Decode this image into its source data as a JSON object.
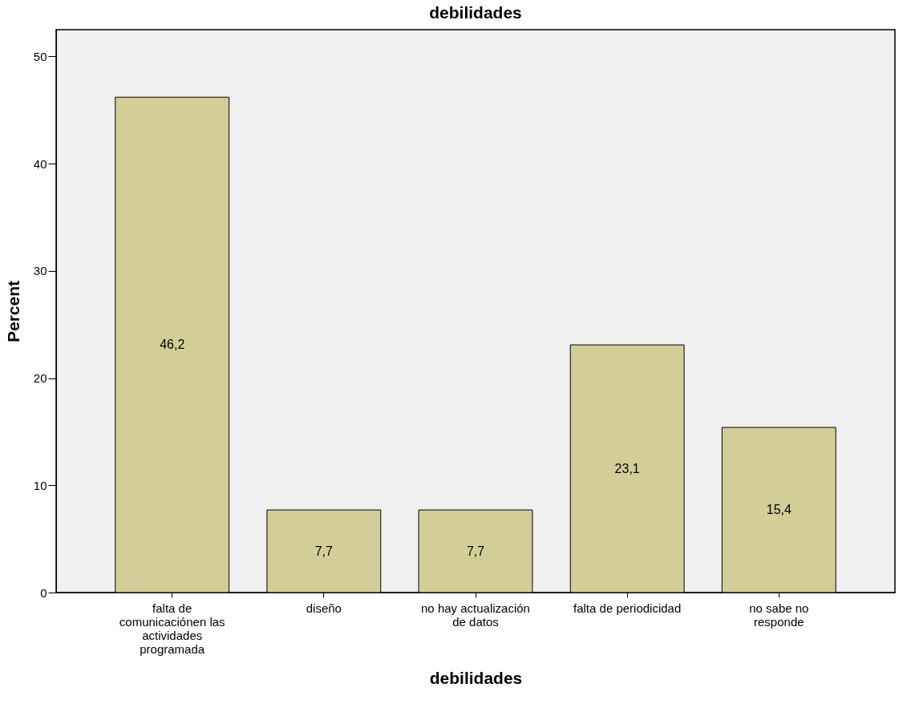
{
  "chart_data": {
    "type": "bar",
    "title": "debilidades",
    "xlabel": "debilidades",
    "ylabel": "Percent",
    "categories": [
      "falta de\ncomunicaciónen las\nactividades\nprogramada",
      "diseño",
      "no hay actualización\nde datos",
      "falta de periodicidad",
      "no sabe no\nresponde"
    ],
    "values": [
      46.2,
      7.7,
      7.7,
      23.1,
      15.4
    ],
    "value_labels": [
      "46,2",
      "7,7",
      "7,7",
      "23,1",
      "15,4"
    ],
    "color": "#d3ce97",
    "ylim": [
      0,
      52.5
    ],
    "yticks": [
      0,
      10,
      20,
      30,
      40,
      50
    ]
  }
}
